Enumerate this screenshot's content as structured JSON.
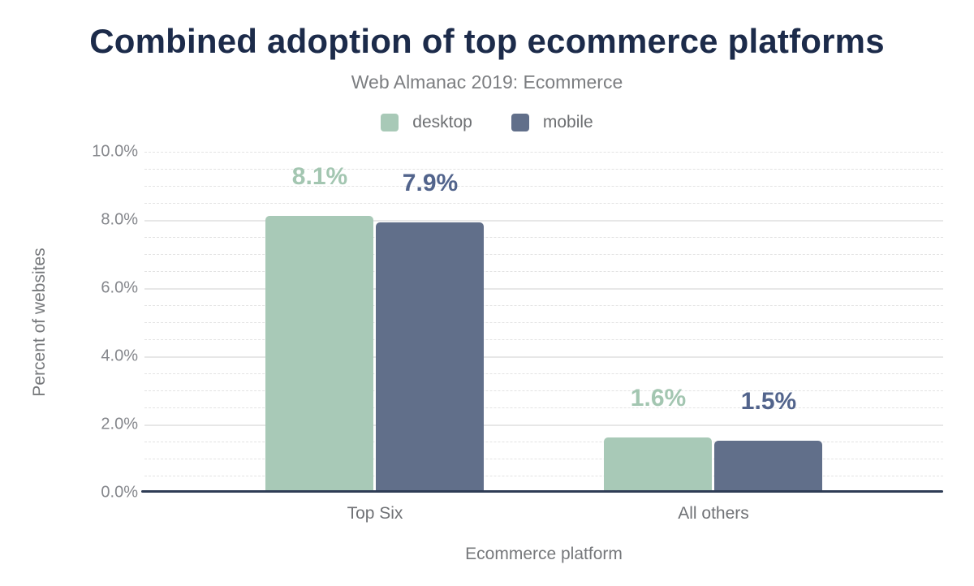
{
  "title": "Combined adoption of top ecommerce platforms",
  "subtitle": "Web Almanac 2019: Ecommerce",
  "colors": {
    "title": "#1c2b4a",
    "subtitle": "#7c7e81",
    "axis_line": "#2e3c55",
    "tick_text": "#85878c",
    "desktop": "#a8c9b7",
    "mobile": "#616f8a",
    "desktop_label": "#a3c6b1",
    "mobile_label": "#52648c"
  },
  "chart_data": {
    "type": "bar",
    "categories": [
      "Top Six",
      "All others"
    ],
    "series": [
      {
        "name": "desktop",
        "color": "#a8c9b7",
        "label_color": "#a3c6b1",
        "values": [
          8.1,
          1.6
        ],
        "value_labels": [
          "8.1%",
          "1.6%"
        ]
      },
      {
        "name": "mobile",
        "color": "#616f8a",
        "label_color": "#52648c",
        "values": [
          7.9,
          1.5
        ],
        "value_labels": [
          "7.9%",
          "1.5%"
        ]
      }
    ],
    "xlabel": "Ecommerce platform",
    "ylabel": "Percent of websites",
    "ylim": [
      0,
      10
    ],
    "yticks": {
      "values": [
        0,
        2,
        4,
        6,
        8,
        10
      ],
      "labels": [
        "0.0%",
        "2.0%",
        "4.0%",
        "6.0%",
        "8.0%",
        "10.0%"
      ]
    },
    "grid": {
      "minor_step": 0.5,
      "major_step": 2,
      "style": "horizontal"
    },
    "legend_position": "top-center"
  }
}
